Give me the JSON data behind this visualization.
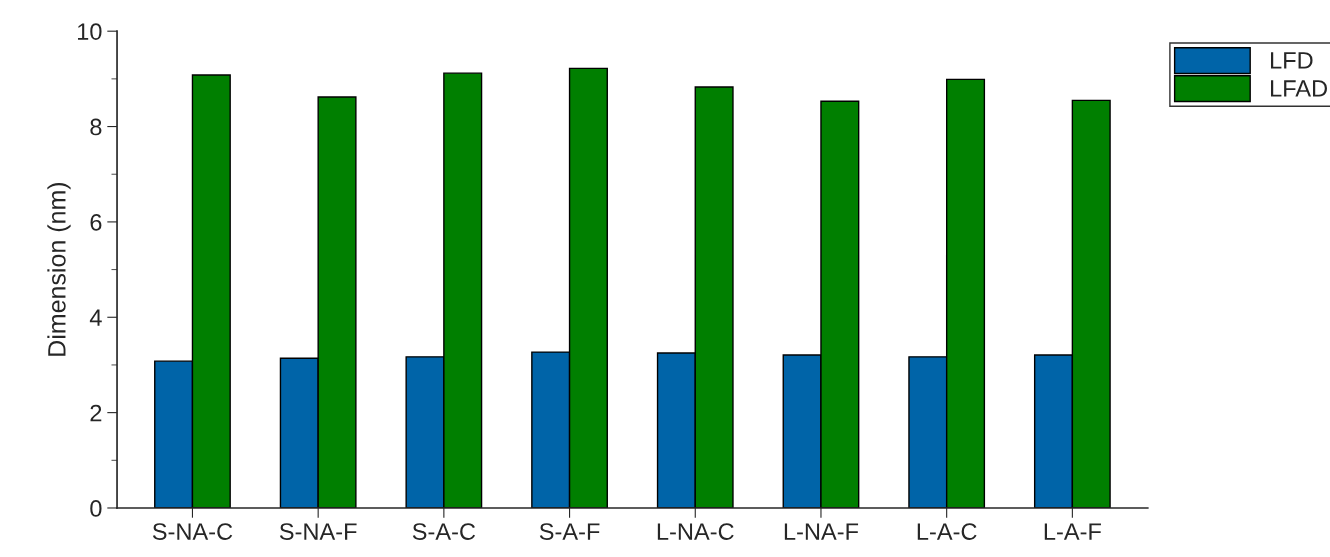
{
  "chart_data": {
    "type": "bar",
    "ylabel": "Dimension (nm)",
    "categories": [
      "S-NA-C",
      "S-NA-F",
      "S-A-C",
      "S-A-F",
      "L-NA-C",
      "L-NA-F",
      "L-A-C",
      "L-A-F"
    ],
    "series": [
      {
        "name": "LFD",
        "color": "#0064a8",
        "values": [
          3.08,
          3.14,
          3.17,
          3.27,
          3.25,
          3.21,
          3.17,
          3.21
        ]
      },
      {
        "name": "LFAD",
        "color": "#007f00",
        "values": [
          9.08,
          8.62,
          9.12,
          9.22,
          8.83,
          8.53,
          8.99,
          8.55
        ]
      }
    ],
    "ylim": [
      0,
      10
    ],
    "yticks": [
      0,
      2,
      4,
      6,
      8,
      10
    ],
    "grid": false,
    "legend": "top right"
  }
}
